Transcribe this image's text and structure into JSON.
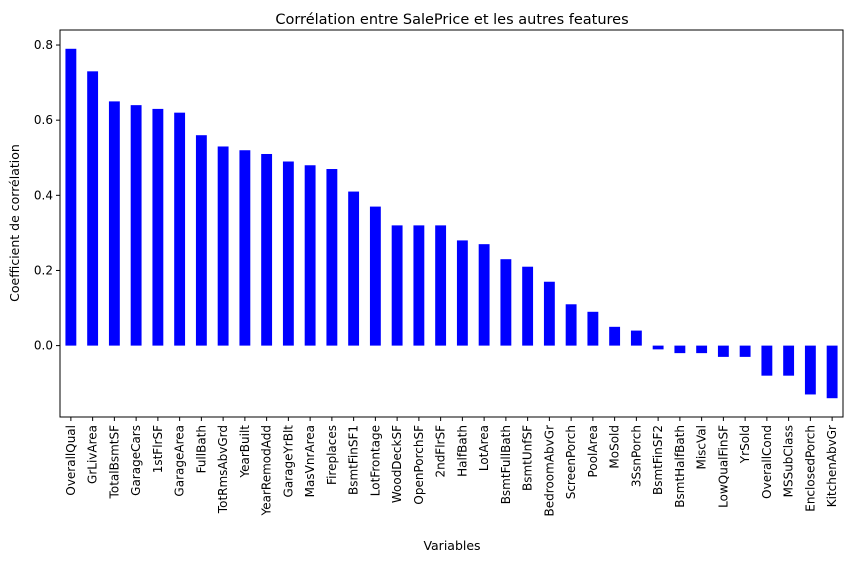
{
  "chart_data": {
    "type": "bar",
    "title": "Corrélation entre SalePrice et les autres features",
    "xlabel": "Variables",
    "ylabel": "Coefficient de corrélation",
    "ylim": [
      -0.19,
      0.84
    ],
    "yticks": [
      0.0,
      0.2,
      0.4,
      0.6,
      0.8
    ],
    "ytick_labels": [
      "0.0",
      "0.2",
      "0.4",
      "0.6",
      "0.8"
    ],
    "bar_color": "#0000ff",
    "grid": false,
    "categories": [
      "OverallQual",
      "GrLivArea",
      "TotalBsmtSF",
      "GarageCars",
      "1stFlrSF",
      "GarageArea",
      "FullBath",
      "TotRmsAbvGrd",
      "YearBuilt",
      "YearRemodAdd",
      "GarageYrBlt",
      "MasVnrArea",
      "Fireplaces",
      "BsmtFinSF1",
      "LotFrontage",
      "WoodDeckSF",
      "OpenPorchSF",
      "2ndFlrSF",
      "HalfBath",
      "LotArea",
      "BsmtFullBath",
      "BsmtUnfSF",
      "BedroomAbvGr",
      "ScreenPorch",
      "PoolArea",
      "MoSold",
      "3SsnPorch",
      "BsmtFinSF2",
      "BsmtHalfBath",
      "MiscVal",
      "LowQualFinSF",
      "YrSold",
      "OverallCond",
      "MSSubClass",
      "EnclosedPorch",
      "KitchenAbvGr"
    ],
    "values": [
      0.79,
      0.73,
      0.65,
      0.64,
      0.63,
      0.62,
      0.56,
      0.53,
      0.52,
      0.51,
      0.49,
      0.48,
      0.47,
      0.41,
      0.37,
      0.32,
      0.32,
      0.32,
      0.28,
      0.27,
      0.23,
      0.21,
      0.17,
      0.11,
      0.09,
      0.05,
      0.04,
      -0.01,
      -0.02,
      -0.02,
      -0.03,
      -0.03,
      -0.08,
      -0.08,
      -0.13,
      -0.14
    ]
  }
}
